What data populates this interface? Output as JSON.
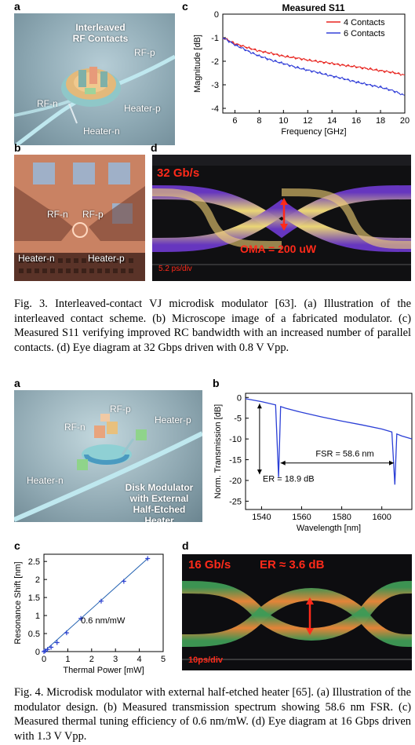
{
  "fig3": {
    "panel_a": {
      "letter": "a",
      "title_line1": "Interleaved",
      "title_line2": "RF Contacts",
      "rf_p": "RF-p",
      "rf_n": "RF-n",
      "heater_p": "Heater-p",
      "heater_n": "Heater-n"
    },
    "panel_b": {
      "letter": "b",
      "rf_n": "RF-n",
      "rf_p": "RF-p",
      "heater_n": "Heater-n",
      "heater_p": "Heater-p"
    },
    "panel_c": {
      "letter": "c",
      "title": "Measured S11",
      "ylabel": "Magnitude [dB]",
      "xlabel": "Frequency [GHz]",
      "xticks": [
        "6",
        "8",
        "10",
        "12",
        "14",
        "16",
        "18",
        "20"
      ],
      "yticks": [
        "0",
        "-1",
        "-2",
        "-3",
        "-4"
      ]
    },
    "panel_d": {
      "letter": "d",
      "rate": "32 Gb/s",
      "oma": "OMA = 200 uW",
      "scale": "5.2 ps/div"
    },
    "caption": "Fig. 3.  Interleaved-contact VJ microdisk modulator [63]. (a) Illustration of the interleaved contact scheme. (b) Microscope image of a fabricated modulator. (c) Measured S11 verifying improved RC bandwidth with an increased number of parallel contacts. (d) Eye diagram at 32 Gbps driven with 0.8 V Vpp."
  },
  "fig4": {
    "panel_a": {
      "letter": "a",
      "rf_p": "RF-p",
      "rf_n": "RF-n",
      "heater_p": "Heater-p",
      "heater_n": "Heater-n",
      "desc_line1": "Disk Modulator",
      "desc_line2": "with External",
      "desc_line3": "Half-Etched Heater"
    },
    "panel_b": {
      "letter": "b",
      "ylabel": "Norm. Transmission [dB]",
      "xlabel": "Wavelength [nm]",
      "xticks": [
        "1540",
        "1560",
        "1580",
        "1600"
      ],
      "yticks": [
        "0",
        "-5",
        "-10",
        "-15",
        "-20",
        "-25"
      ],
      "fsr": "FSR = 58.6 nm",
      "er": "ER = 18.9 dB"
    },
    "panel_c": {
      "letter": "c",
      "ylabel": "Resonance Shift [nm]",
      "xlabel": "Thermal Power [mW]",
      "xticks": [
        "0",
        "1",
        "2",
        "3",
        "4",
        "5"
      ],
      "yticks": [
        "0",
        "0.5",
        "1",
        "1.5",
        "2",
        "2.5"
      ],
      "annotation": "0.6 nm/mW"
    },
    "panel_d": {
      "letter": "d",
      "rate": "16 Gb/s",
      "er": "ER ≈ 3.6 dB",
      "scale": "10ps/div"
    },
    "caption": "Fig. 4.  Microdisk modulator with external half-etched heater [65]. (a) Illustration of the modulator design. (b) Measured transmission spectrum showing 58.6 nm FSR. (c) Measured thermal tuning efficiency of 0.6 nm/mW. (d) Eye diagram at 16 Gbps driven with 1.3 V Vpp."
  },
  "chart_data": [
    {
      "type": "line",
      "title": "Measured S11",
      "xlabel": "Frequency [GHz]",
      "ylabel": "Magnitude [dB]",
      "xlim": [
        5,
        20
      ],
      "ylim": [
        -4.2,
        0
      ],
      "legend": "top-right",
      "series": [
        {
          "name": "4 Contacts",
          "color": "#e8241f",
          "x": [
            5,
            6,
            7,
            8,
            9,
            10,
            11,
            12,
            13,
            14,
            15,
            16,
            17,
            18,
            19,
            20
          ],
          "y": [
            -1.0,
            -1.25,
            -1.42,
            -1.56,
            -1.67,
            -1.78,
            -1.86,
            -1.95,
            -2.02,
            -2.1,
            -2.17,
            -2.24,
            -2.32,
            -2.4,
            -2.48,
            -2.58
          ]
        },
        {
          "name": "6 Contacts",
          "color": "#3340d8",
          "x": [
            5,
            6,
            7,
            8,
            9,
            10,
            11,
            12,
            13,
            14,
            15,
            16,
            17,
            18,
            19,
            20
          ],
          "y": [
            -1.0,
            -1.3,
            -1.55,
            -1.78,
            -1.95,
            -2.1,
            -2.25,
            -2.38,
            -2.5,
            -2.63,
            -2.75,
            -2.88,
            -3.0,
            -3.1,
            -3.25,
            -3.45
          ]
        }
      ]
    },
    {
      "type": "line",
      "xlabel": "Wavelength [nm]",
      "ylabel": "Norm. Transmission [dB]",
      "xlim": [
        1532,
        1615
      ],
      "ylim": [
        -27,
        1
      ],
      "series": [
        {
          "name": "",
          "color": "#2b3fd6",
          "x": [
            1532,
            1540,
            1547,
            1548.5,
            1549.5,
            1552,
            1560,
            1570,
            1580,
            1590,
            1600,
            1605,
            1606.5,
            1607.5,
            1610,
            1615
          ],
          "y": [
            -0.3,
            -1.0,
            -1.8,
            -19.2,
            -2.2,
            -2.6,
            -3.6,
            -4.7,
            -5.7,
            -6.6,
            -7.6,
            -8.3,
            -21.0,
            -8.8,
            -9.3,
            -10.0
          ]
        }
      ]
    },
    {
      "type": "scatter",
      "xlabel": "Thermal Power [mW]",
      "ylabel": "Resonance Shift [nm]",
      "xlim": [
        0,
        5
      ],
      "ylim": [
        0,
        2.7
      ],
      "annotation": "0.6 nm/mW",
      "series": [
        {
          "name": "",
          "color": "#1f5fb0",
          "x": [
            0.0,
            0.05,
            0.15,
            0.3,
            0.55,
            0.95,
            1.55,
            2.4,
            3.35,
            4.35
          ],
          "y": [
            0.0,
            0.02,
            0.06,
            0.12,
            0.25,
            0.52,
            0.92,
            1.4,
            1.95,
            2.58
          ]
        }
      ]
    }
  ]
}
